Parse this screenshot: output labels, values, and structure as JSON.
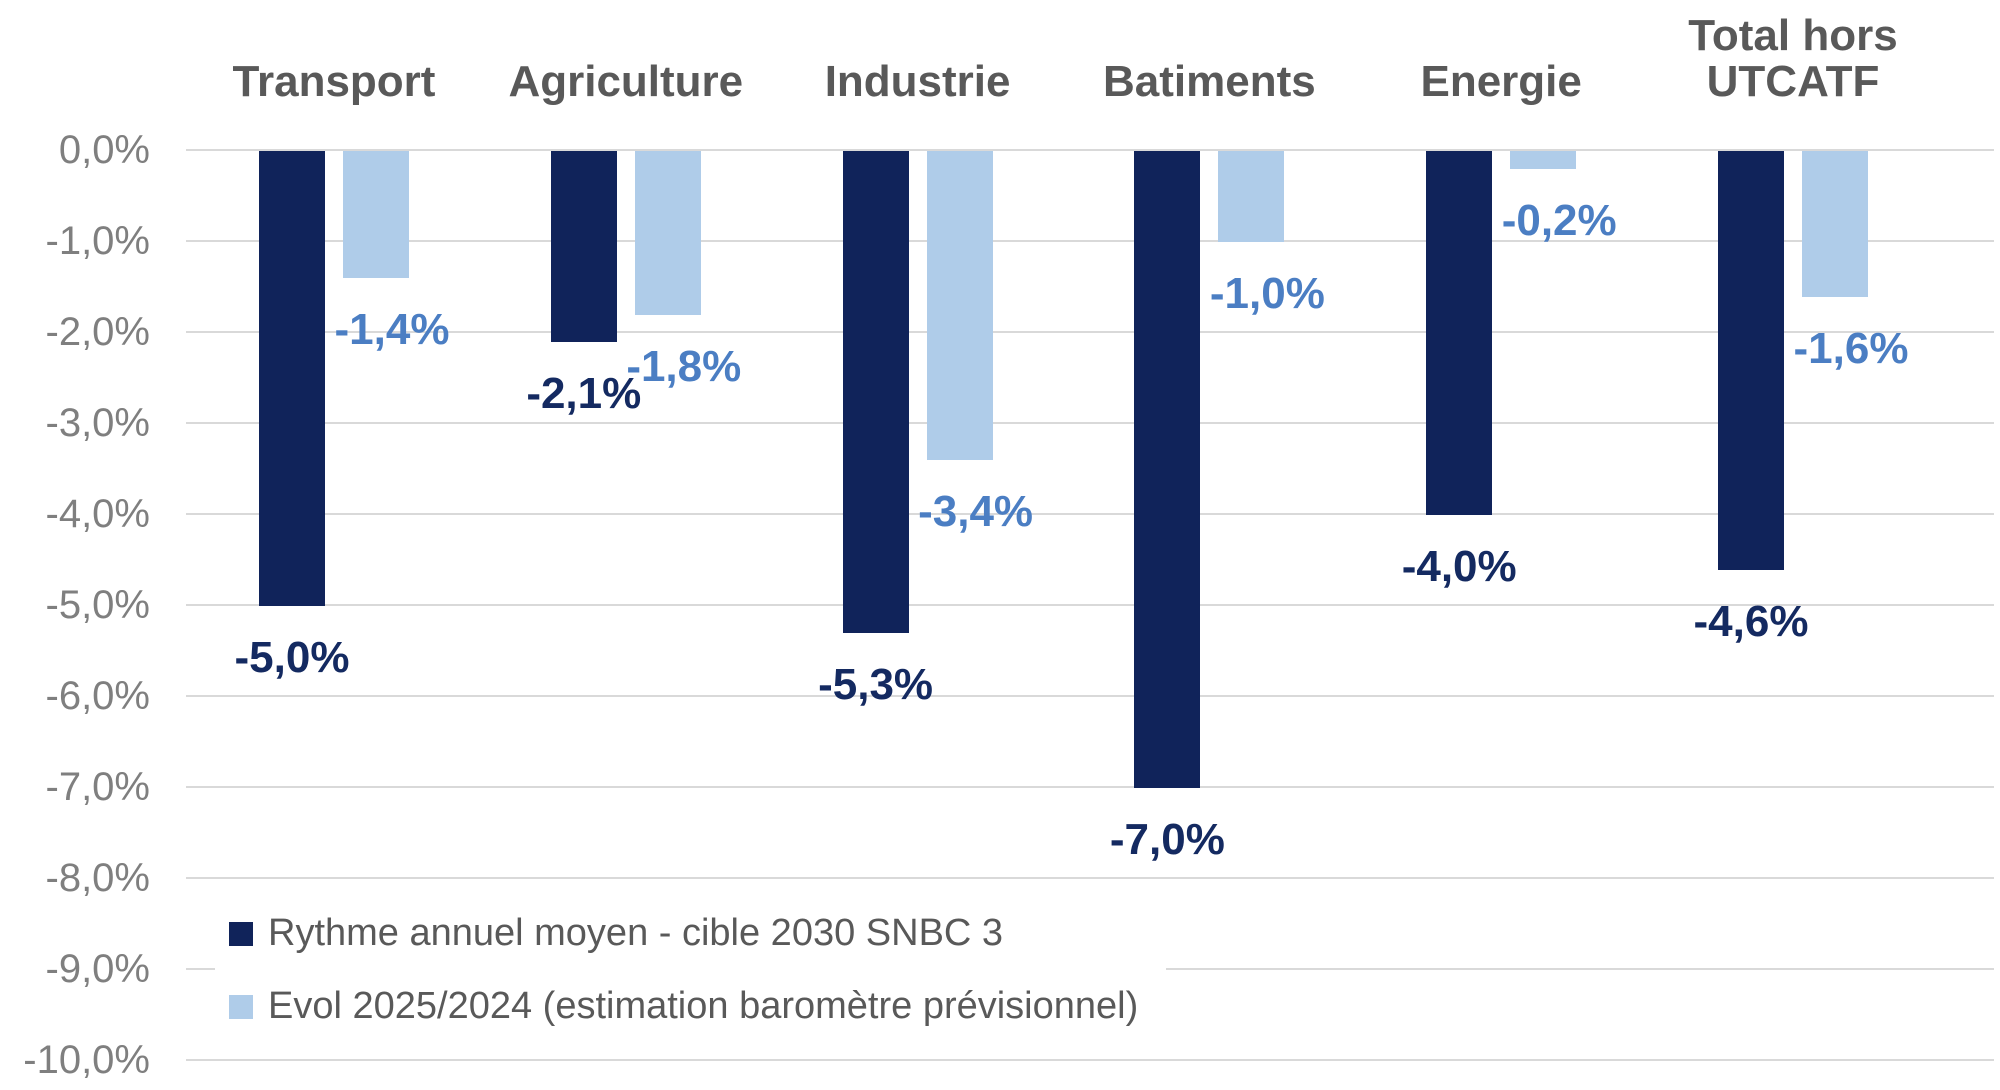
{
  "chart_data": {
    "type": "bar",
    "title": "",
    "categories": [
      "Transport",
      "Agriculture",
      "Industrie",
      "Batiments",
      "Energie",
      "Total hors UTCATF"
    ],
    "series": [
      {
        "name": "Rythme annuel moyen - cible 2030 SNBC 3",
        "color": "#10235A",
        "label_color": "#142A61",
        "values": [
          -5.0,
          -2.1,
          -5.3,
          -7.0,
          -4.0,
          -4.6
        ],
        "value_labels": [
          "-5,0%",
          "-2,1%",
          "-5,3%",
          "-7,0%",
          "-4,0%",
          "-4,6%"
        ]
      },
      {
        "name": "Evol 2025/2024 (estimation baromètre prévisionnel)",
        "color": "#AFCCE9",
        "label_color": "#4B7EC3",
        "values": [
          -1.4,
          -1.8,
          -3.4,
          -1.0,
          -0.2,
          -1.6
        ],
        "value_labels": [
          "-1,4%",
          "-1,8%",
          "-3,4%",
          "-1,0%",
          "-0,2%",
          "-1,6%"
        ]
      }
    ],
    "y_axis": {
      "min": -10,
      "max": 0,
      "step": 1,
      "tick_labels": [
        "0,0%",
        "-1,0%",
        "-2,0%",
        "-3,0%",
        "-4,0%",
        "-5,0%",
        "-6,0%",
        "-7,0%",
        "-8,0%",
        "-9,0%",
        "-10,0%"
      ]
    },
    "grid": true,
    "legend_position": "bottom-left",
    "colors": {
      "gridline": "#D9D9D9",
      "axis_tick_text": "#7F7F7F",
      "category_text": "#595959",
      "legend_text": "#595959",
      "background": "#FFFFFF"
    }
  }
}
